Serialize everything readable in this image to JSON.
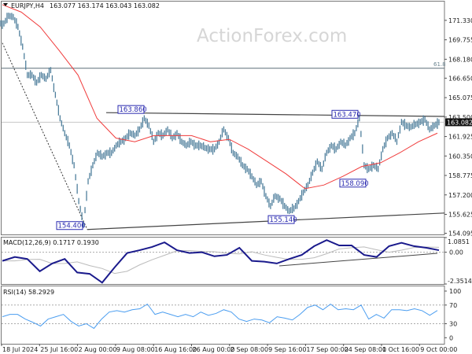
{
  "chart_data": {
    "type": "line",
    "header": {
      "symbol": "EURJPY,H4",
      "ohlc": "163.077 163.174 163.043 163.082"
    },
    "watermark": "ActionForex.com",
    "x_tick_labels": [
      "18 Jul 2024",
      "25 Jul 16:00",
      "2 Aug 00:00",
      "9 Aug 08:00",
      "16 Aug 16:00",
      "26 Aug 00:00",
      "2 Sep 08:00",
      "9 Sep 16:00",
      "17 Sep 00:00",
      "24 Sep 08:00",
      "1 Oct 16:00",
      "9 Oct 00:00"
    ],
    "price_pane": {
      "y_ticks": [
        "171.330",
        "169.755",
        "168.180",
        "166.650",
        "165.075",
        "163.500",
        "161.925",
        "160.350",
        "158.775",
        "157.200",
        "155.625",
        "154.095"
      ],
      "ylim": [
        154.0,
        172.85
      ],
      "current_price": "163.082",
      "closes": [
        171.08,
        171.7,
        171.6,
        170.8,
        169.2,
        166.9,
        166.9,
        166.3,
        166.9,
        166.6,
        167.3,
        165.3,
        163.4,
        162.2,
        161.2,
        159.6,
        156.7,
        154.8,
        158.3,
        159.6,
        160.6,
        160.3,
        160.6,
        160.6,
        161.2,
        161.5,
        161.8,
        162.2,
        162.0,
        162.5,
        163.4,
        162.8,
        161.5,
        162.2,
        162.0,
        162.5,
        161.8,
        162.2,
        161.5,
        161.2,
        161.5,
        161.2,
        161.2,
        161.0,
        160.9,
        160.9,
        161.5,
        162.5,
        161.8,
        160.6,
        160.3,
        159.6,
        159.3,
        158.7,
        158.0,
        158.3,
        157.1,
        156.3,
        157.1,
        156.9,
        156.3,
        155.9,
        156.1,
        156.7,
        157.4,
        158.0,
        159.0,
        159.9,
        159.3,
        160.6,
        161.2,
        160.9,
        161.5,
        161.2,
        161.8,
        162.2,
        163.4,
        159.6,
        159.3,
        159.6,
        159.3,
        160.9,
        161.8,
        162.2,
        161.5,
        163.1,
        162.8,
        162.7,
        162.9,
        163.1,
        163.3,
        162.5,
        162.8,
        163.08
      ],
      "moving_average": [
        172.6,
        172.0,
        170.8,
        168.9,
        166.9,
        163.4,
        161.8,
        161.5,
        162.0,
        162.0,
        162.0,
        161.5,
        161.7,
        160.9,
        159.9,
        158.9,
        157.7,
        158.0,
        158.7,
        159.5,
        159.8,
        160.6,
        161.5,
        162.2
      ],
      "fib_level": {
        "label": "61.8",
        "price": 167.45
      },
      "swing_labels": [
        {
          "text": "154.400",
          "price": 154.4
        },
        {
          "text": "163.860",
          "price": 163.86
        },
        {
          "text": "155.140",
          "price": 155.14
        },
        {
          "text": "163.470",
          "price": 163.47
        },
        {
          "text": "158.090",
          "price": 158.09
        }
      ],
      "colors": {
        "bars": "#4f7f9c",
        "ma": "#f03c3c",
        "labels": "#2b2bb0"
      }
    },
    "macd_pane": {
      "title": "MACD(12,26,9) 0.1717 0.1930",
      "y_ticks": [
        "1.0851",
        "0.00",
        "-2.3514"
      ],
      "ylim": [
        -2.3514,
        1.0851
      ],
      "macd": [
        -0.64,
        -0.35,
        -0.5,
        -1.41,
        -0.83,
        -0.5,
        -1.5,
        -1.6,
        -2.25,
        -1.12,
        -0.06,
        0.15,
        0.39,
        0.73,
        0.15,
        -0.06,
        0.0,
        -0.3,
        -0.2,
        0.33,
        -0.64,
        -0.7,
        -0.83,
        -0.5,
        -0.2,
        0.45,
        0.9,
        0.5,
        0.5,
        -0.2,
        -0.35,
        0.45,
        0.7,
        0.45,
        0.33,
        0.15
      ],
      "colors": {
        "macd": "#1a1a8c",
        "signal": "#bbbbbb"
      }
    },
    "rsi_pane": {
      "title": "RSI(14) 58.2929",
      "y_ticks": [
        "100",
        "70",
        "30",
        "0"
      ],
      "ylim": [
        0,
        100
      ],
      "levels": [
        70,
        30
      ],
      "rsi": [
        45,
        50,
        50,
        40,
        33,
        25,
        40,
        45,
        50,
        35,
        25,
        30,
        20,
        40,
        55,
        58,
        55,
        60,
        62,
        72,
        50,
        55,
        50,
        45,
        50,
        45,
        55,
        48,
        52,
        60,
        55,
        40,
        35,
        40,
        38,
        32,
        45,
        42,
        38,
        50,
        65,
        70,
        60,
        72,
        60,
        62,
        60,
        70,
        40,
        50,
        42,
        60,
        60,
        58,
        62,
        58,
        48,
        58.3
      ],
      "colors": {
        "rsi": "#4a9df0"
      }
    }
  }
}
